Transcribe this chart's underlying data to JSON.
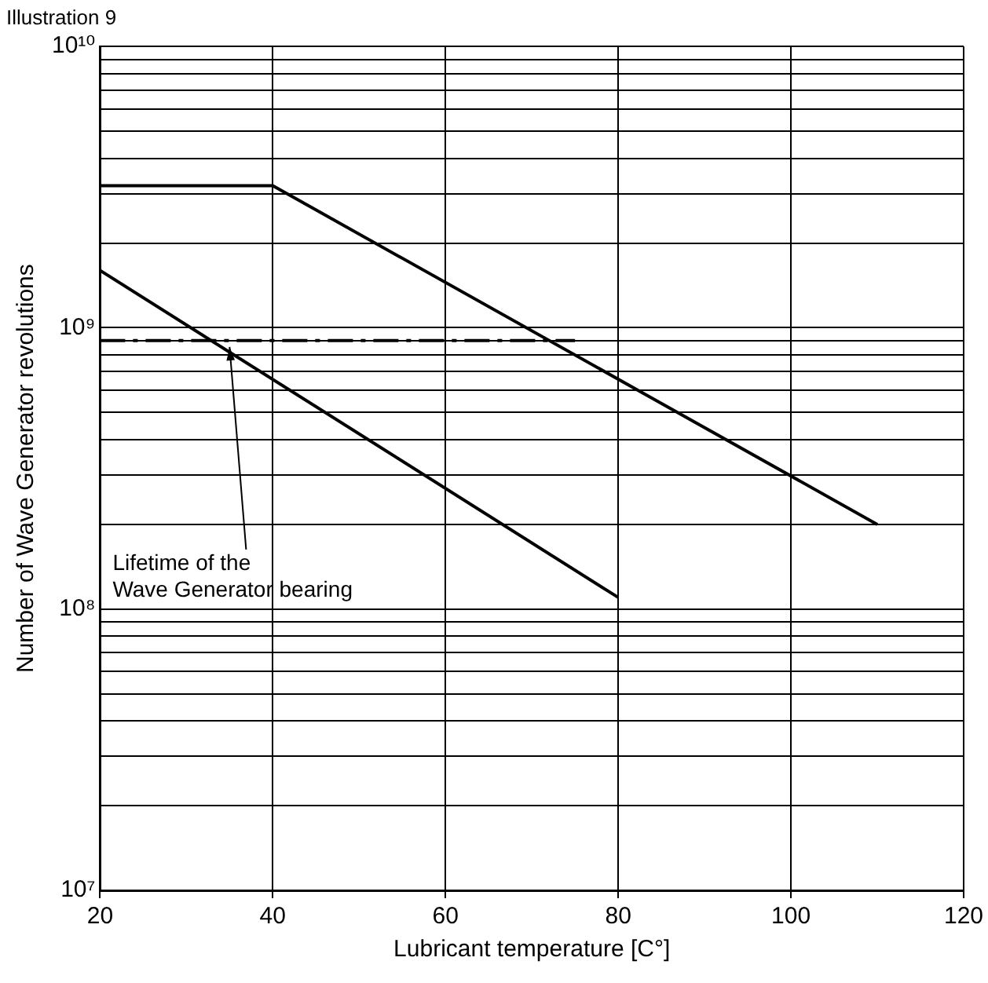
{
  "chart_data": {
    "type": "line",
    "title": "Illustration 9",
    "xlabel": "Lubricant temperature [C°]",
    "ylabel": "Number of Wave Generator revolutions",
    "log": "y",
    "grid": true,
    "legend": false,
    "marker": "none",
    "xlim": [
      20,
      120
    ],
    "xticks": [
      20,
      40,
      60,
      80,
      100,
      120
    ],
    "ylim": [
      10000000,
      10000000000
    ],
    "yticks": [
      {
        "value": 10000000,
        "label": "10⁷"
      },
      {
        "value": 20000000,
        "label": null
      },
      {
        "value": 30000000,
        "label": null
      },
      {
        "value": 40000000,
        "label": null
      },
      {
        "value": 50000000,
        "label": null
      },
      {
        "value": 60000000,
        "label": null
      },
      {
        "value": 70000000,
        "label": null
      },
      {
        "value": 80000000,
        "label": null
      },
      {
        "value": 90000000,
        "label": null
      },
      {
        "value": 100000000,
        "label": "10⁸"
      },
      {
        "value": 200000000,
        "label": null
      },
      {
        "value": 300000000,
        "label": null
      },
      {
        "value": 400000000,
        "label": null
      },
      {
        "value": 500000000,
        "label": null
      },
      {
        "value": 600000000,
        "label": null
      },
      {
        "value": 700000000,
        "label": null
      },
      {
        "value": 800000000,
        "label": null
      },
      {
        "value": 900000000,
        "label": null
      },
      {
        "value": 1000000000,
        "label": "10⁹"
      },
      {
        "value": 2000000000,
        "label": null
      },
      {
        "value": 3000000000,
        "label": null
      },
      {
        "value": 4000000000,
        "label": null
      },
      {
        "value": 5000000000,
        "label": null
      },
      {
        "value": 6000000000,
        "label": null
      },
      {
        "value": 7000000000,
        "label": null
      },
      {
        "value": 8000000000,
        "label": null
      },
      {
        "value": 9000000000,
        "label": null
      },
      {
        "value": 10000000000,
        "label": "10¹⁰"
      }
    ],
    "series": [
      {
        "type": "line",
        "color": "#000000",
        "x": [
          20,
          40,
          110
        ],
        "values": [
          3200000000,
          3200000000,
          200000000
        ]
      },
      {
        "type": "line",
        "color": "#000000",
        "x": [
          20,
          80
        ],
        "values": [
          1600000000,
          110000000
        ]
      },
      {
        "type": "line",
        "color": "#000000",
        "line_style": "dashed",
        "x": [
          20,
          75
        ],
        "values": [
          900000000,
          900000000
        ]
      }
    ],
    "annotations": [
      {
        "text": "Lifetime of the\nWave Generator bearing",
        "x": 35,
        "y": 900000000
      }
    ]
  }
}
